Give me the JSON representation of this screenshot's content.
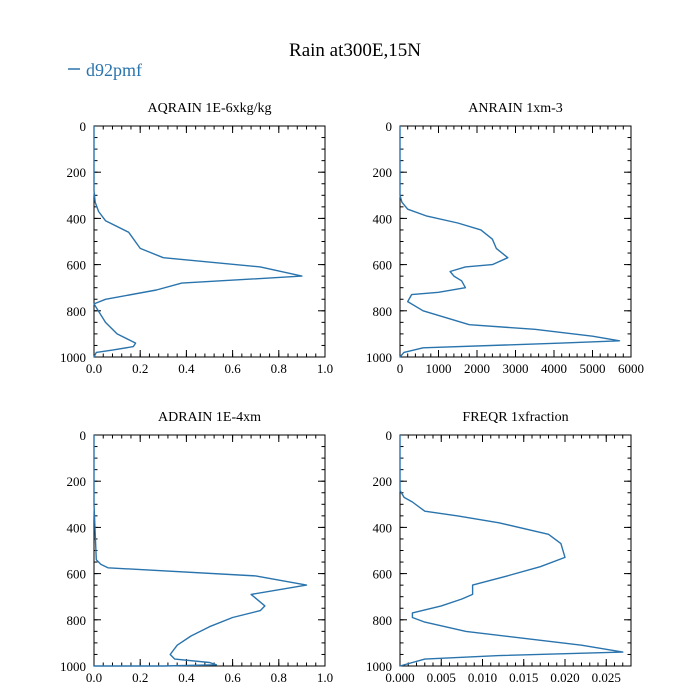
{
  "title": "Rain at300E,15N",
  "legend": {
    "label": "d92pmf",
    "color": "#2a74ad"
  },
  "chart_data": [
    {
      "type": "line",
      "title": "AQRAIN  1E-6xkg/kg",
      "xlim": [
        0,
        1.0
      ],
      "ylim": [
        1000,
        0
      ],
      "xticks": [
        0,
        0.2,
        0.4,
        0.6,
        0.8,
        1.0
      ],
      "xtick_labels": [
        "0.0",
        "0.2",
        "0.4",
        "0.6",
        "0.8",
        "1.0"
      ],
      "yticks": [
        0,
        200,
        400,
        600,
        800,
        1000
      ],
      "ytick_labels": [
        "0",
        "200",
        "400",
        "600",
        "800",
        "1000"
      ],
      "series": [
        {
          "name": "d92pmf",
          "color": "#2a74ad",
          "x": [
            0,
            0,
            0.005,
            0.02,
            0.05,
            0.15,
            0.2,
            0.3,
            0.72,
            0.9,
            0.38,
            0.27,
            0.05,
            0.0,
            0.05,
            0.1,
            0.18,
            0.17,
            0.08,
            0.01,
            0.0
          ],
          "y": [
            0,
            280,
            330,
            370,
            410,
            460,
            530,
            570,
            610,
            650,
            680,
            710,
            750,
            770,
            850,
            900,
            940,
            955,
            970,
            980,
            1000
          ]
        }
      ]
    },
    {
      "type": "line",
      "title": "ANRAIN  1xm-3",
      "xlim": [
        0,
        6000
      ],
      "ylim": [
        1000,
        0
      ],
      "xticks": [
        0,
        1000,
        2000,
        3000,
        4000,
        5000,
        6000
      ],
      "xtick_labels": [
        "0",
        "1000",
        "2000",
        "3000",
        "4000",
        "5000",
        "6000"
      ],
      "yticks": [
        0,
        200,
        400,
        600,
        800,
        1000
      ],
      "ytick_labels": [
        "0",
        "200",
        "400",
        "600",
        "800",
        "1000"
      ],
      "series": [
        {
          "name": "d92pmf",
          "color": "#2a74ad",
          "x": [
            0,
            0,
            50,
            200,
            700,
            1500,
            2100,
            2400,
            2500,
            2800,
            2400,
            1700,
            1300,
            1400,
            1600,
            1700,
            1000,
            300,
            200,
            600,
            1800,
            3500,
            5000,
            5700,
            4200,
            600,
            100,
            0
          ],
          "y": [
            0,
            300,
            330,
            360,
            390,
            420,
            450,
            490,
            530,
            570,
            600,
            610,
            630,
            650,
            670,
            700,
            720,
            730,
            760,
            800,
            860,
            880,
            910,
            930,
            940,
            960,
            980,
            1000
          ]
        }
      ]
    },
    {
      "type": "line",
      "title": "ADRAIN  1E-4xm",
      "xlim": [
        0,
        1.0
      ],
      "ylim": [
        1000,
        0
      ],
      "xticks": [
        0,
        0.2,
        0.4,
        0.6,
        0.8,
        1.0
      ],
      "xtick_labels": [
        "0.0",
        "0.2",
        "0.4",
        "0.6",
        "0.8",
        "1.0"
      ],
      "yticks": [
        0,
        200,
        400,
        600,
        800,
        1000
      ],
      "ytick_labels": [
        "0",
        "200",
        "400",
        "600",
        "800",
        "1000"
      ],
      "series": [
        {
          "name": "d92pmf",
          "color": "#2a74ad",
          "x": [
            0,
            0,
            0.01,
            0.03,
            0.06,
            0.7,
            0.92,
            0.68,
            0.74,
            0.72,
            0.6,
            0.5,
            0.42,
            0.36,
            0.33,
            0.35,
            0.5,
            0.53,
            0.3,
            0.0
          ],
          "y": [
            0,
            300,
            540,
            560,
            575,
            610,
            650,
            690,
            740,
            760,
            790,
            830,
            870,
            910,
            950,
            970,
            985,
            995,
            1000,
            1000
          ]
        }
      ]
    },
    {
      "type": "line",
      "title": "FREQR  1xfraction",
      "xlim": [
        0,
        0.028
      ],
      "ylim": [
        1000,
        0
      ],
      "xticks": [
        0,
        0.005,
        0.01,
        0.015,
        0.02,
        0.025
      ],
      "xtick_labels": [
        "0.000",
        "0.005",
        "0.010",
        "0.015",
        "0.020",
        "0.025"
      ],
      "yticks": [
        0,
        200,
        400,
        600,
        800,
        1000
      ],
      "ytick_labels": [
        "0",
        "200",
        "400",
        "600",
        "800",
        "1000"
      ],
      "series": [
        {
          "name": "d92pmf",
          "color": "#2a74ad",
          "x": [
            0,
            0,
            0.0005,
            0.0015,
            0.003,
            0.007,
            0.012,
            0.018,
            0.0195,
            0.02,
            0.017,
            0.013,
            0.0088,
            0.0088,
            0.0075,
            0.005,
            0.0015,
            0.0015,
            0.003,
            0.008,
            0.015,
            0.022,
            0.027,
            0.012,
            0.003,
            0.0
          ],
          "y": [
            0,
            240,
            270,
            290,
            330,
            350,
            380,
            430,
            470,
            530,
            570,
            610,
            650,
            690,
            710,
            740,
            770,
            790,
            810,
            850,
            880,
            910,
            940,
            955,
            970,
            1000
          ]
        }
      ]
    }
  ]
}
